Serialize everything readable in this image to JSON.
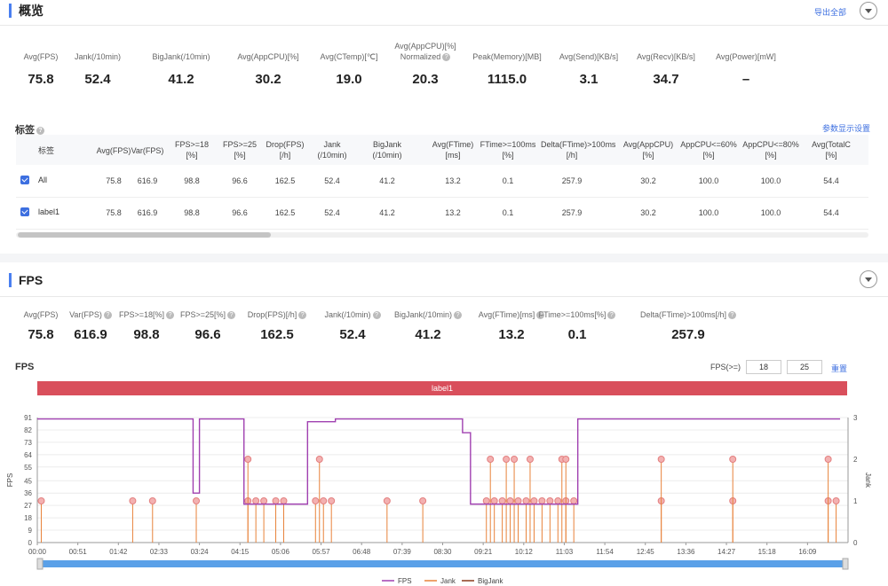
{
  "overview": {
    "title": "概览",
    "export_label": "导出全部",
    "metrics": [
      {
        "label": "Avg(FPS)",
        "value": "75.8",
        "help": false
      },
      {
        "label": "Jank(/10min)",
        "value": "52.4",
        "help": true
      },
      {
        "label": "BigJank(/10min)",
        "value": "41.2",
        "help": true
      },
      {
        "label": "Avg(AppCPU)[%]",
        "value": "30.2",
        "help": true
      },
      {
        "label": "Avg(CTemp)[℃]",
        "value": "19.0",
        "help": false
      },
      {
        "label": "Avg(AppCPU)[%]",
        "label2": "Normalized",
        "value": "20.3",
        "help": true
      },
      {
        "label": "Peak(Memory)[MB]",
        "value": "1115.0",
        "help": false
      },
      {
        "label": "Avg(Send)[KB/s]",
        "value": "3.1",
        "help": false
      },
      {
        "label": "Avg(Recv)[KB/s]",
        "value": "34.7",
        "help": false
      },
      {
        "label": "Avg(Power)[mW]",
        "value": "–",
        "help": true
      }
    ]
  },
  "tags": {
    "title": "标签",
    "config_label": "参数显示设置",
    "columns": [
      {
        "l1": "标签",
        "l2": ""
      },
      {
        "l1": "Avg(FPS)",
        "l2": ""
      },
      {
        "l1": "Var(FPS)",
        "l2": ""
      },
      {
        "l1": "FPS>=18",
        "l2": "[%]"
      },
      {
        "l1": "FPS>=25",
        "l2": "[%]"
      },
      {
        "l1": "Drop(FPS)",
        "l2": "[/h]"
      },
      {
        "l1": "Jank",
        "l2": "(/10min)"
      },
      {
        "l1": "BigJank",
        "l2": "(/10min)"
      },
      {
        "l1": "Avg(FTime)",
        "l2": "[ms]"
      },
      {
        "l1": "FTime>=100ms",
        "l2": "[%]"
      },
      {
        "l1": "Delta(FTime)>100ms",
        "l2": "[/h]"
      },
      {
        "l1": "Avg(AppCPU)",
        "l2": "[%]"
      },
      {
        "l1": "AppCPU<=60%",
        "l2": "[%]"
      },
      {
        "l1": "AppCPU<=80%",
        "l2": "[%]"
      },
      {
        "l1": "Avg(TotalC",
        "l2": "[%]"
      }
    ],
    "rows": [
      {
        "name": "All",
        "values": [
          "75.8",
          "616.9",
          "98.8",
          "96.6",
          "162.5",
          "52.4",
          "41.2",
          "13.2",
          "0.1",
          "257.9",
          "30.2",
          "100.0",
          "100.0",
          "54.4"
        ]
      },
      {
        "name": "label1",
        "values": [
          "75.8",
          "616.9",
          "98.8",
          "96.6",
          "162.5",
          "52.4",
          "41.2",
          "13.2",
          "0.1",
          "257.9",
          "30.2",
          "100.0",
          "100.0",
          "54.4"
        ]
      }
    ]
  },
  "fps_section": {
    "title": "FPS",
    "metrics": [
      {
        "label": "Avg(FPS)",
        "value": "75.8"
      },
      {
        "label": "Var(FPS)",
        "value": "616.9"
      },
      {
        "label": "FPS>=18[%]",
        "value": "98.8"
      },
      {
        "label": "FPS>=25[%]",
        "value": "96.6"
      },
      {
        "label": "Drop(FPS)[/h]",
        "value": "162.5"
      },
      {
        "label": "Jank(/10min)",
        "value": "52.4"
      },
      {
        "label": "BigJank(/10min)",
        "value": "41.2"
      },
      {
        "label": "Avg(FTime)[ms]",
        "value": "13.2"
      },
      {
        "label": "FTime>=100ms[%]",
        "value": "0.1"
      },
      {
        "label": "Delta(FTime)>100ms[/h]",
        "value": "257.9"
      }
    ],
    "chart_title": "FPS",
    "threshold_label": "FPS(>=)",
    "threshold_low": "18",
    "threshold_high": "25",
    "reset_label": "重置",
    "label_band": "label1"
  },
  "chart_data": {
    "type": "line",
    "y_left_label": "FPS",
    "y_right_label": "Jank",
    "y_left_ticks": [
      0,
      9,
      18,
      27,
      36,
      45,
      55,
      64,
      73,
      82,
      91
    ],
    "y_right_ticks": [
      0,
      1,
      2,
      3
    ],
    "ylim_left": [
      0,
      91
    ],
    "ylim_right": [
      0,
      3
    ],
    "x_ticks": [
      "00:00",
      "00:51",
      "01:42",
      "02:33",
      "03:24",
      "04:15",
      "05:06",
      "05:57",
      "06:48",
      "07:39",
      "08:30",
      "09:21",
      "10:12",
      "11:03",
      "11:54",
      "12:45",
      "13:36",
      "14:27",
      "15:18",
      "16:09"
    ],
    "series": [
      {
        "name": "FPS",
        "color": "#a040b0",
        "segments": [
          {
            "x": [
              "00:00",
              "03:16"
            ],
            "y": 90
          },
          {
            "x": [
              "03:16",
              "03:24"
            ],
            "y": 36
          },
          {
            "x": [
              "03:24",
              "04:20"
            ],
            "y": 90
          },
          {
            "x": [
              "04:20",
              "05:40"
            ],
            "y": 28
          },
          {
            "x": [
              "05:40",
              "06:15"
            ],
            "y": 88
          },
          {
            "x": [
              "06:15",
              "08:55"
            ],
            "y": 90
          },
          {
            "x": [
              "08:55",
              "09:05"
            ],
            "y": 80
          },
          {
            "x": [
              "09:05",
              "11:20"
            ],
            "y": 28
          },
          {
            "x": [
              "11:20",
              "16:50"
            ],
            "y": 90
          }
        ]
      },
      {
        "name": "Jank",
        "color": "#e8823a",
        "spikes_jank1": [
          "00:05",
          "02:00",
          "02:25",
          "03:20",
          "04:25",
          "04:35",
          "04:45",
          "05:00",
          "05:10",
          "05:50",
          "06:00",
          "06:10",
          "07:20",
          "08:05",
          "09:25",
          "09:35",
          "09:45",
          "09:55",
          "10:05",
          "10:15",
          "10:25",
          "10:35",
          "10:45",
          "10:55",
          "11:05",
          "11:15",
          "13:05",
          "14:35",
          "16:35",
          "16:45"
        ],
        "spikes_jank2": [
          "04:25",
          "05:55",
          "09:30",
          "09:50",
          "10:00",
          "10:20",
          "11:00",
          "11:05",
          "13:05",
          "14:35",
          "16:35"
        ]
      },
      {
        "name": "BigJank",
        "color": "#8a3a1a"
      }
    ]
  }
}
